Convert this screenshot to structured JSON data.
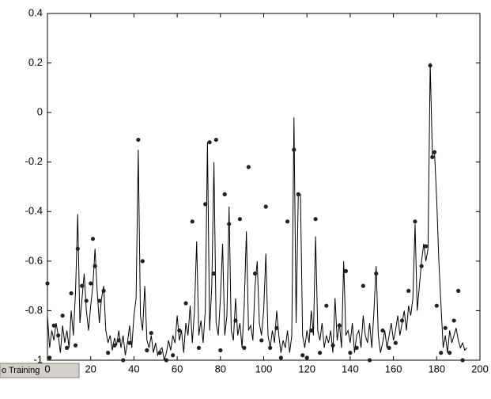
{
  "chart_data": {
    "type": "line",
    "xlim": [
      0,
      200
    ],
    "ylim": [
      -1,
      0.4
    ],
    "xticks": [
      0,
      20,
      40,
      60,
      80,
      100,
      120,
      140,
      160,
      180,
      200
    ],
    "yticks": [
      -1,
      -0.8,
      -0.6,
      -0.4,
      -0.2,
      0,
      0.2,
      0.4
    ],
    "series": [
      {
        "kind": "line",
        "color": "#000000",
        "x": [
          0,
          1,
          2,
          3,
          4,
          5,
          6,
          7,
          8,
          9,
          10,
          11,
          12,
          13,
          14,
          15,
          16,
          17,
          18,
          19,
          20,
          21,
          22,
          23,
          24,
          25,
          26,
          27,
          28,
          29,
          30,
          31,
          32,
          33,
          34,
          35,
          36,
          37,
          38,
          39,
          40,
          41,
          42,
          43,
          44,
          45,
          46,
          47,
          48,
          49,
          50,
          51,
          52,
          53,
          54,
          55,
          56,
          57,
          58,
          59,
          60,
          61,
          62,
          63,
          64,
          65,
          66,
          67,
          68,
          69,
          70,
          71,
          72,
          73,
          74,
          75,
          76,
          77,
          78,
          79,
          80,
          81,
          82,
          83,
          84,
          85,
          86,
          87,
          88,
          89,
          90,
          91,
          92,
          93,
          94,
          95,
          96,
          97,
          98,
          99,
          100,
          101,
          102,
          103,
          104,
          105,
          106,
          107,
          108,
          109,
          110,
          111,
          112,
          113,
          114,
          115,
          116,
          117,
          118,
          119,
          120,
          121,
          122,
          123,
          124,
          125,
          126,
          127,
          128,
          129,
          130,
          131,
          132,
          133,
          134,
          135,
          136,
          137,
          138,
          139,
          140,
          141,
          142,
          143,
          144,
          145,
          146,
          147,
          148,
          149,
          150,
          151,
          152,
          153,
          154,
          155,
          156,
          157,
          158,
          159,
          160,
          161,
          162,
          163,
          164,
          165,
          166,
          167,
          168,
          169,
          170,
          171,
          172,
          173,
          174,
          175,
          176,
          177,
          178,
          179,
          180,
          181,
          182,
          183,
          184,
          185,
          186,
          187,
          188,
          189,
          190,
          191,
          192,
          193,
          194
        ],
        "values": [
          -0.82,
          -0.95,
          -0.88,
          -0.92,
          -0.85,
          -0.9,
          -0.97,
          -0.86,
          -0.93,
          -0.88,
          -0.95,
          -0.8,
          -0.9,
          -0.72,
          -0.41,
          -0.85,
          -0.75,
          -0.65,
          -0.8,
          -0.88,
          -0.78,
          -0.7,
          -0.55,
          -0.72,
          -0.85,
          -0.75,
          -0.7,
          -0.88,
          -0.93,
          -0.9,
          -0.96,
          -0.91,
          -0.94,
          -0.88,
          -0.95,
          -0.9,
          -0.98,
          -0.93,
          -0.86,
          -0.95,
          -0.82,
          -0.75,
          -0.15,
          -0.82,
          -0.88,
          -0.7,
          -0.92,
          -0.95,
          -0.9,
          -0.97,
          -0.93,
          -0.98,
          -0.96,
          -0.95,
          -1.0,
          -0.97,
          -0.92,
          -0.96,
          -0.9,
          -0.93,
          -0.82,
          -0.92,
          -0.88,
          -0.97,
          -0.85,
          -0.9,
          -0.78,
          -0.93,
          -0.8,
          -0.52,
          -0.9,
          -0.84,
          -0.93,
          -0.8,
          -0.12,
          -0.88,
          -0.7,
          -0.2,
          -0.85,
          -0.9,
          -0.75,
          -0.53,
          -0.9,
          -0.82,
          -0.38,
          -0.88,
          -0.92,
          -0.75,
          -0.9,
          -0.85,
          -0.95,
          -0.78,
          -0.48,
          -0.88,
          -0.86,
          -0.92,
          -0.7,
          -0.6,
          -0.85,
          -0.9,
          -0.8,
          -0.57,
          -0.9,
          -0.95,
          -0.88,
          -0.93,
          -0.8,
          -0.9,
          -0.97,
          -0.92,
          -0.95,
          -0.88,
          -0.97,
          -0.9,
          -0.02,
          -0.85,
          -0.33,
          -0.33,
          -0.9,
          -0.95,
          -0.88,
          -0.93,
          -0.8,
          -0.9,
          -0.5,
          -0.88,
          -0.92,
          -0.85,
          -0.95,
          -0.9,
          -0.93,
          -0.88,
          -0.97,
          -0.75,
          -0.92,
          -0.85,
          -0.95,
          -0.6,
          -0.9,
          -0.88,
          -0.93,
          -0.85,
          -0.97,
          -0.9,
          -0.88,
          -0.95,
          -0.82,
          -0.9,
          -0.93,
          -0.85,
          -0.95,
          -0.8,
          -0.62,
          -0.9,
          -0.97,
          -0.93,
          -0.88,
          -0.95,
          -0.9,
          -0.85,
          -0.92,
          -0.88,
          -0.82,
          -0.9,
          -0.85,
          -0.8,
          -0.88,
          -0.78,
          -0.82,
          -0.75,
          -0.45,
          -0.8,
          -0.7,
          -0.6,
          -0.53,
          -0.6,
          -0.55,
          0.2,
          -0.17,
          -0.16,
          -0.35,
          -0.6,
          -0.78,
          -0.95,
          -0.9,
          -0.97,
          -0.88,
          -0.93,
          -0.9,
          -0.87,
          -0.92,
          -0.95,
          -0.93,
          -0.96,
          -0.95
        ]
      },
      {
        "kind": "scatter",
        "color": "#222222",
        "x": [
          0,
          1,
          3,
          5,
          7,
          9,
          11,
          13,
          14,
          16,
          18,
          20,
          21,
          22,
          24,
          26,
          28,
          31,
          33,
          35,
          38,
          42,
          44,
          46,
          48,
          52,
          55,
          58,
          61,
          64,
          67,
          70,
          73,
          75,
          77,
          78,
          80,
          82,
          84,
          87,
          89,
          91,
          93,
          96,
          99,
          101,
          103,
          106,
          108,
          111,
          114,
          116,
          118,
          120,
          122,
          124,
          126,
          129,
          132,
          135,
          138,
          140,
          143,
          146,
          149,
          152,
          155,
          158,
          161,
          164,
          167,
          170,
          173,
          175,
          177,
          178,
          179,
          180,
          182,
          184,
          186,
          188,
          190,
          192
        ],
        "values": [
          -0.69,
          -0.99,
          -0.86,
          -0.9,
          -0.82,
          -0.95,
          -0.73,
          -0.94,
          -0.55,
          -0.7,
          -0.76,
          -0.69,
          -0.51,
          -0.62,
          -0.76,
          -0.72,
          -0.97,
          -0.94,
          -0.92,
          -1.0,
          -0.93,
          -0.11,
          -0.6,
          -0.96,
          -0.89,
          -0.97,
          -1.0,
          -0.98,
          -0.88,
          -0.77,
          -0.44,
          -0.95,
          -0.37,
          -0.12,
          -0.65,
          -0.11,
          -0.96,
          -0.33,
          -0.45,
          -0.84,
          -0.43,
          -0.95,
          -0.22,
          -0.65,
          -0.92,
          -0.38,
          -0.95,
          -0.87,
          -0.99,
          -0.44,
          -0.15,
          -0.33,
          -0.98,
          -0.99,
          -0.88,
          -0.43,
          -0.97,
          -0.78,
          -0.94,
          -0.86,
          -0.64,
          -0.97,
          -0.95,
          -0.7,
          -1.0,
          -0.65,
          -0.88,
          -0.95,
          -0.93,
          -0.84,
          -0.72,
          -0.44,
          -0.62,
          -0.54,
          0.19,
          -0.18,
          -0.16,
          -0.78,
          -0.97,
          -0.87,
          -0.97,
          -0.84,
          -0.72,
          -1.0
        ]
      }
    ]
  },
  "ui": {
    "button": {
      "label": "o Training"
    }
  }
}
